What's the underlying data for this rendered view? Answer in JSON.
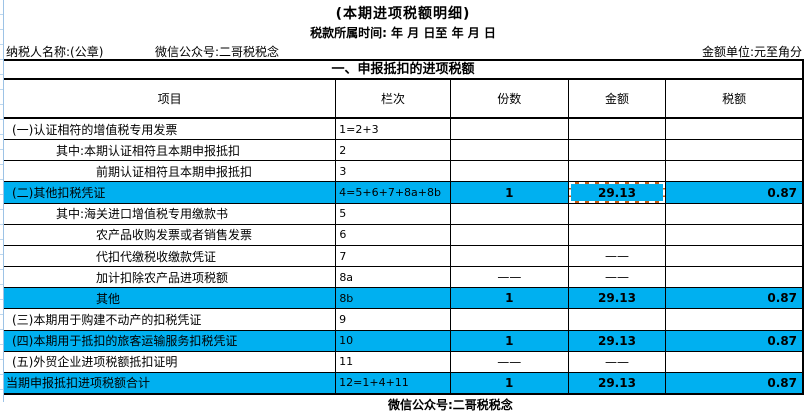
{
  "page": {
    "title": "(本期进项税额明细)",
    "period_line": "税款所属时间:  年    月    日至    年    月    日",
    "taxpayer_label": "纳税人名称:(公章)",
    "wechat_label": "微信公众号:二哥税税念",
    "unit_label": "金额单位:元至角分",
    "footer_watermark": "微信公众号:二哥税税念"
  },
  "colors": {
    "highlight_blue": "#00B0F0",
    "grid_light_blue": "#9DC3E6",
    "table_border": "#000000",
    "marquee_base": "#C55A11",
    "marquee_dash": "#FFFFFF"
  },
  "table": {
    "section_title": "一、申报抵扣的进项税额",
    "columns": [
      "项目",
      "栏次",
      "份数",
      "金额",
      "税额"
    ],
    "rows": [
      {
        "item": "(一)认证相符的增值税专用发票",
        "indent": 0,
        "col": "1=2+3",
        "copies": "",
        "amount": "",
        "tax": "",
        "highlight": false,
        "ants": false
      },
      {
        "item": "其中:本期认证相符且本期申报抵扣",
        "indent": 1,
        "col": "2",
        "copies": "",
        "amount": "",
        "tax": "",
        "highlight": false,
        "ants": false
      },
      {
        "item": "前期认证相符且本期申报抵扣",
        "indent": 2,
        "col": "3",
        "copies": "",
        "amount": "",
        "tax": "",
        "highlight": false,
        "ants": false
      },
      {
        "item": "(二)其他扣税凭证",
        "indent": 0,
        "col": "4=5+6+7+8a+8b",
        "copies": "1",
        "amount": "29.13",
        "tax": "0.87",
        "highlight": true,
        "ants": true
      },
      {
        "item": "其中:海关进口增值税专用缴款书",
        "indent": 1,
        "col": "5",
        "copies": "",
        "amount": "",
        "tax": "",
        "highlight": false,
        "ants": false
      },
      {
        "item": "农产品收购发票或者销售发票",
        "indent": 2,
        "col": "6",
        "copies": "",
        "amount": "",
        "tax": "",
        "highlight": false,
        "ants": false
      },
      {
        "item": "代扣代缴税收缴款凭证",
        "indent": 2,
        "col": "7",
        "copies": "",
        "amount": "——",
        "tax": "",
        "highlight": false,
        "ants": false
      },
      {
        "item": "加计扣除农产品进项税额",
        "indent": 2,
        "col": "8a",
        "copies": "——",
        "amount": "——",
        "tax": "",
        "highlight": false,
        "ants": false
      },
      {
        "item": "其他",
        "indent": 2,
        "col": "8b",
        "copies": "1",
        "amount": "29.13",
        "tax": "0.87",
        "highlight": true,
        "ants": false
      },
      {
        "item": "(三)本期用于购建不动产的扣税凭证",
        "indent": 0,
        "col": "9",
        "copies": "",
        "amount": "",
        "tax": "",
        "highlight": false,
        "ants": false
      },
      {
        "item": "(四)本期用于抵扣的旅客运输服务扣税凭证",
        "indent": 0,
        "col": "10",
        "copies": "1",
        "amount": "29.13",
        "tax": "0.87",
        "highlight": true,
        "ants": false
      },
      {
        "item": "(五)外贸企业进项税额抵扣证明",
        "indent": 0,
        "col": "11",
        "copies": "——",
        "amount": "——",
        "tax": "",
        "highlight": false,
        "ants": false
      },
      {
        "item": "当期申报抵扣进项税额合计",
        "indent": -1,
        "col": "12=1+4+11",
        "copies": "1",
        "amount": "29.13",
        "tax": "0.87",
        "highlight": true,
        "ants": false
      }
    ]
  }
}
